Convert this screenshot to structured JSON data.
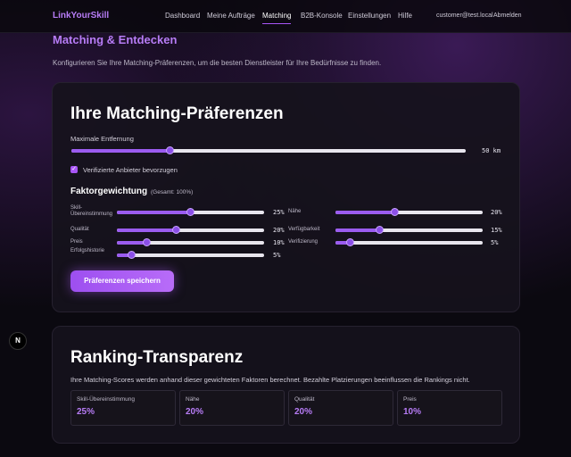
{
  "nav": {
    "brand": "LinkYourSkill",
    "links": [
      "Dashboard",
      "Meine Aufträge",
      "Matching",
      "B2B-Konsole",
      "Einstellungen",
      "Hilfe"
    ],
    "active": 2,
    "user": "customer@test.local",
    "logout": "Abmelden"
  },
  "header": {
    "title": "Matching & Entdecken",
    "subtitle": "Konfigurieren Sie Ihre Matching-Präferenzen, um die besten Dienstleister für Ihre Bedürfnisse zu finden."
  },
  "preferences": {
    "title": "Ihre Matching-Präferenzen",
    "distance": {
      "label": "Maximale Entfernung",
      "value": 50,
      "value_label": "50 km",
      "range": [
        0,
        200
      ]
    },
    "verified": {
      "label": "Verifizierte Anbieter bevorzugen",
      "checked": true
    },
    "factors_title": "Faktorgewichtung",
    "factors_note": "(Gesamt: 100%)",
    "factor_range": [
      0,
      50
    ],
    "factors": [
      {
        "label": "Skill-Übereinstimmung",
        "value": 25,
        "value_label": "25%"
      },
      {
        "label": "Nähe",
        "value": 20,
        "value_label": "20%"
      },
      {
        "label": "Qualität",
        "value": 20,
        "value_label": "20%"
      },
      {
        "label": "Verfügbarkeit",
        "value": 15,
        "value_label": "15%"
      },
      {
        "label": "Preis",
        "value": 10,
        "value_label": "10%"
      },
      {
        "label": "Verifizierung",
        "value": 5,
        "value_label": "5%"
      },
      {
        "label": "Erfolgshistorie",
        "value": 5,
        "value_label": "5%"
      }
    ],
    "button": "Präferenzen speichern"
  },
  "ranking": {
    "title": "Ranking-Transparenz",
    "text": "Ihre Matching-Scores werden anhand dieser gewichteten Faktoren berechnet. Bezahlte Platzierungen beeinflussen die Rankings nicht.",
    "cards": [
      {
        "label": "Skill-Übereinstimmung",
        "value": "25%"
      },
      {
        "label": "Nähe",
        "value": "20%"
      },
      {
        "label": "Qualität",
        "value": "20%"
      },
      {
        "label": "Preis",
        "value": "10%"
      }
    ]
  }
}
